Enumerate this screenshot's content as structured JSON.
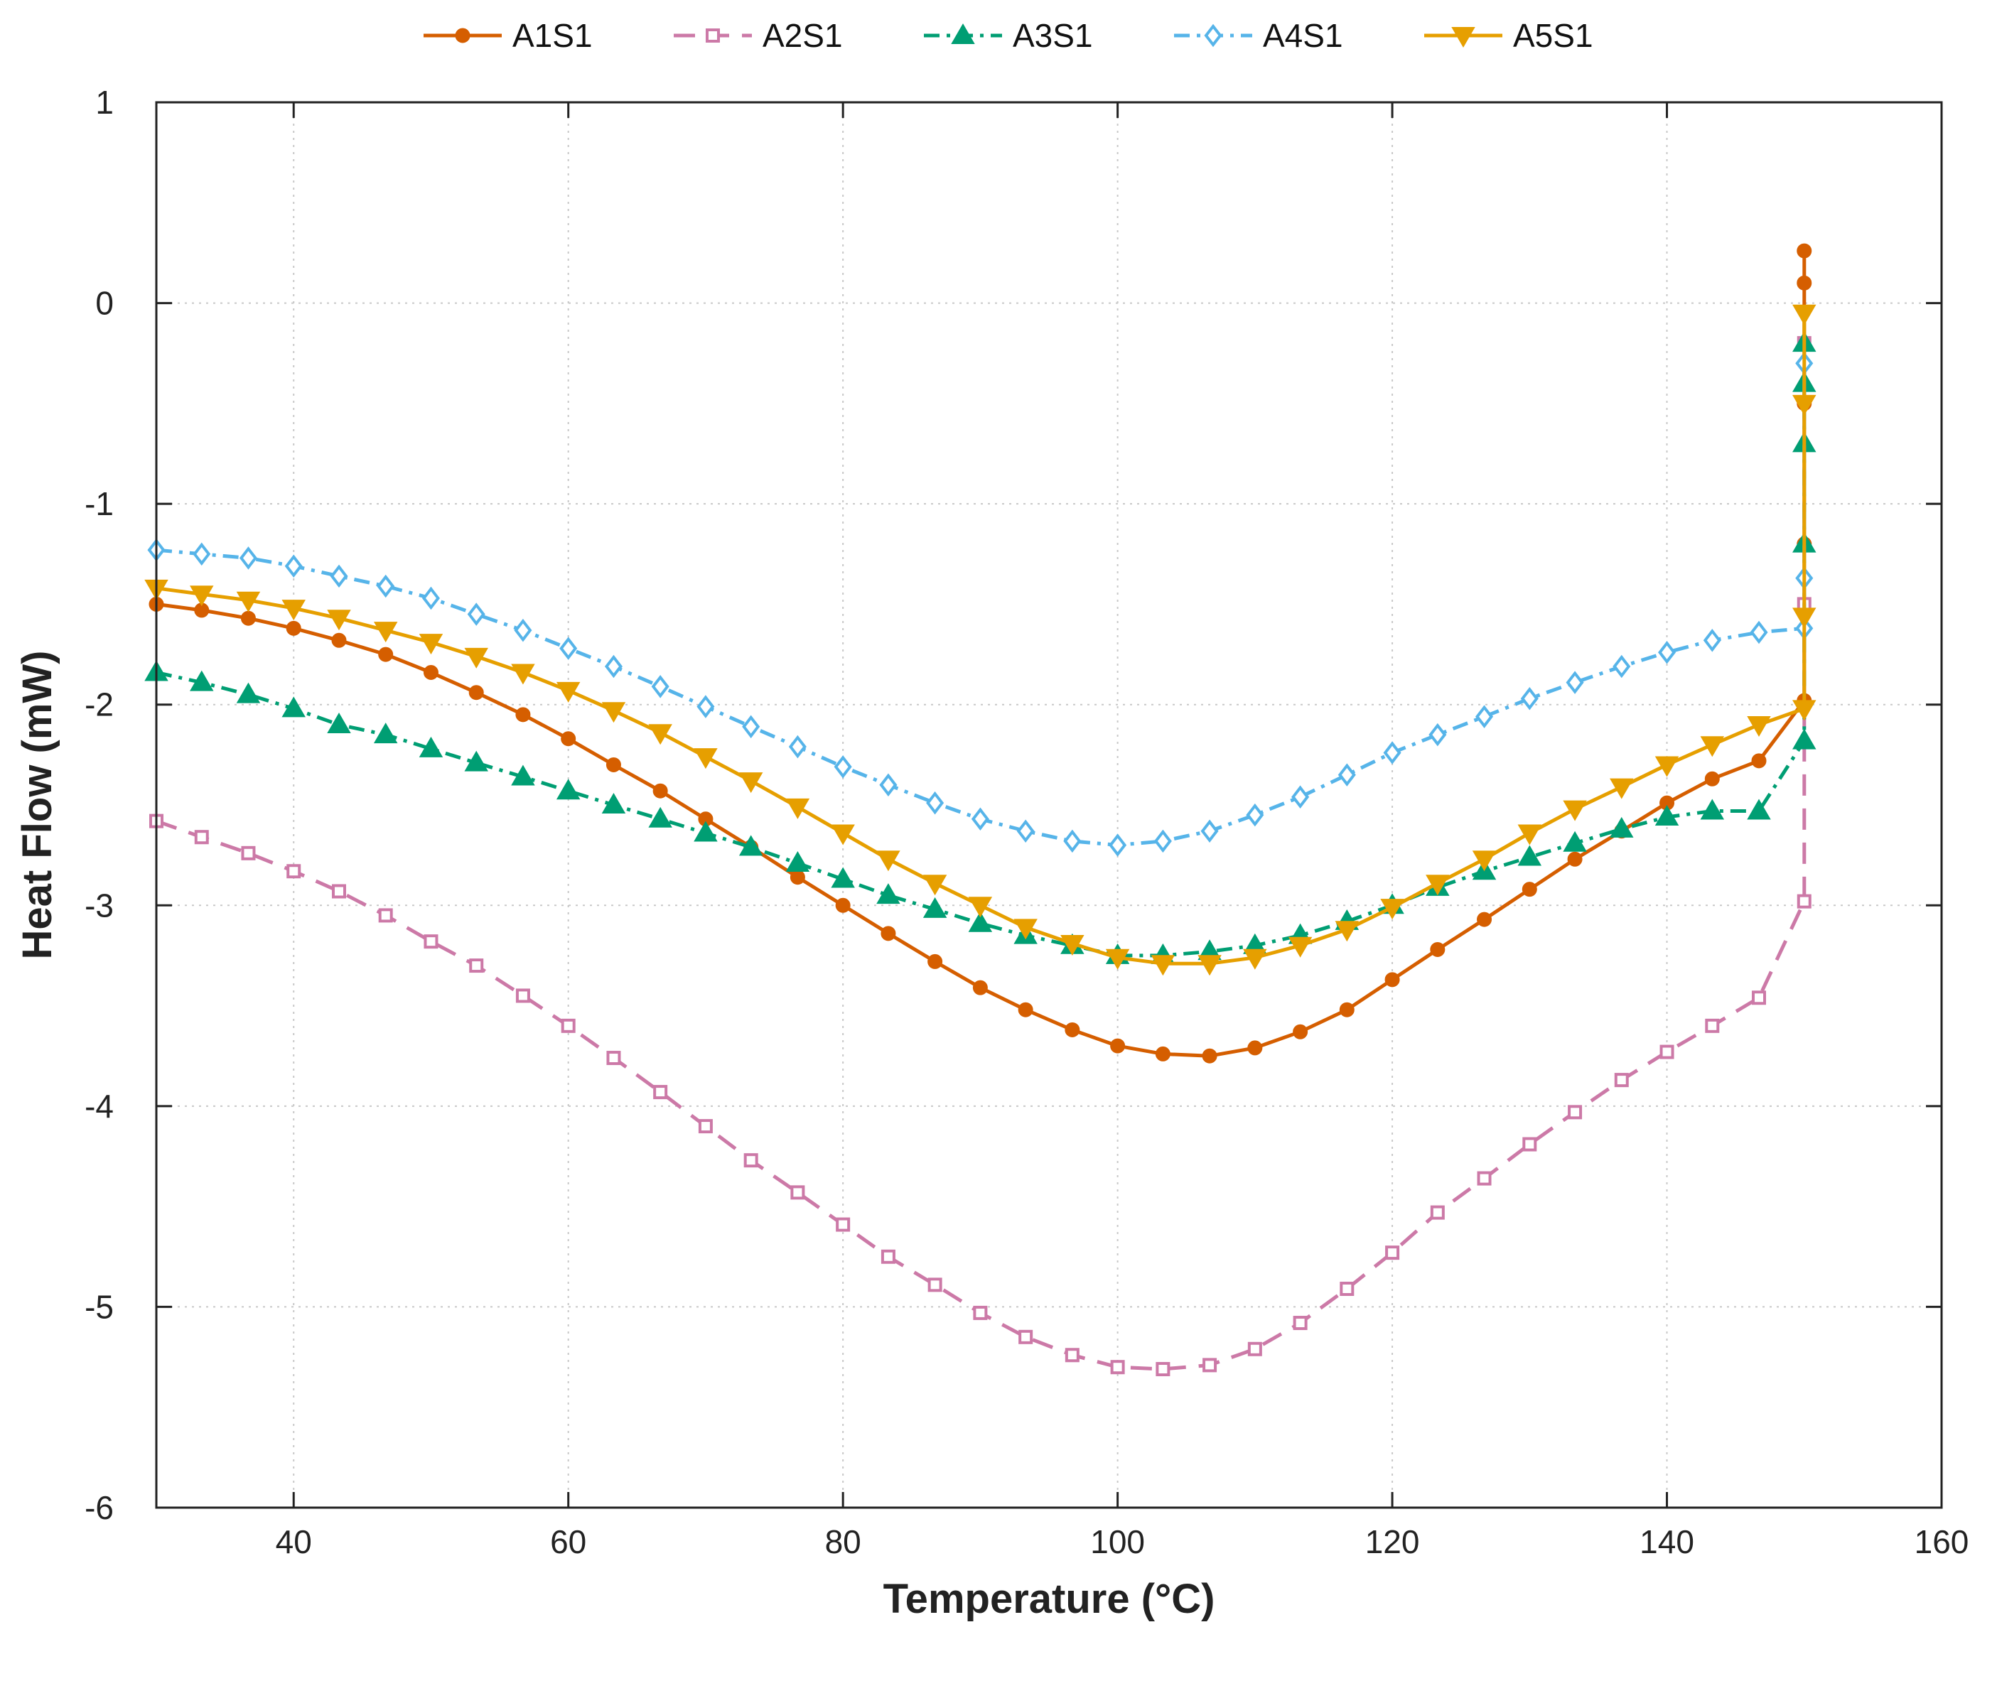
{
  "chart_data": {
    "type": "line",
    "title": "",
    "xlabel": "Temperature (°C)",
    "ylabel": "Heat Flow (mW)",
    "xlim": [
      30,
      160
    ],
    "ylim": [
      -6,
      1
    ],
    "xticks": [
      "40",
      "60",
      "80",
      "100",
      "120",
      "140",
      "160"
    ],
    "yticks": [
      "1",
      "0",
      "-1",
      "-2",
      "-3",
      "-4",
      "-5",
      "-6"
    ],
    "grid": true,
    "legend_position": "top-outside",
    "series": [
      {
        "name": "A1S1",
        "color": "#D55E00",
        "line_style": "solid",
        "marker": "circle",
        "x": [
          30,
          33.3,
          36.7,
          40,
          43.3,
          46.7,
          50,
          53.3,
          56.7,
          60,
          63.3,
          66.7,
          70,
          73.3,
          76.7,
          80,
          83.3,
          86.7,
          90,
          93.3,
          96.7,
          100,
          103.3,
          106.7,
          110,
          113.3,
          116.7,
          120,
          123.3,
          126.7,
          130,
          133.3,
          136.7,
          140,
          143.3,
          146.7,
          150,
          150,
          150,
          150,
          150
        ],
        "y": [
          -1.5,
          -1.53,
          -1.57,
          -1.62,
          -1.68,
          -1.75,
          -1.84,
          -1.94,
          -2.05,
          -2.17,
          -2.3,
          -2.43,
          -2.57,
          -2.71,
          -2.86,
          -3.0,
          -3.14,
          -3.28,
          -3.41,
          -3.52,
          -3.62,
          -3.7,
          -3.74,
          -3.75,
          -3.71,
          -3.63,
          -3.52,
          -3.37,
          -3.22,
          -3.07,
          -2.92,
          -2.77,
          -2.63,
          -2.49,
          -2.37,
          -2.28,
          -1.98,
          -1.2,
          -0.5,
          0.1,
          0.26
        ]
      },
      {
        "name": "A2S1",
        "color": "#CC79A7",
        "line_style": "dashed",
        "marker": "square",
        "x": [
          30,
          33.3,
          36.7,
          40,
          43.3,
          46.7,
          50,
          53.3,
          56.7,
          60,
          63.3,
          66.7,
          70,
          73.3,
          76.7,
          80,
          83.3,
          86.7,
          90,
          93.3,
          96.7,
          100,
          103.3,
          106.7,
          110,
          113.3,
          116.7,
          120,
          123.3,
          126.7,
          130,
          133.3,
          136.7,
          140,
          143.3,
          146.7,
          150,
          150,
          150
        ],
        "y": [
          -2.58,
          -2.66,
          -2.74,
          -2.83,
          -2.93,
          -3.05,
          -3.18,
          -3.3,
          -3.45,
          -3.6,
          -3.76,
          -3.93,
          -4.1,
          -4.27,
          -4.43,
          -4.59,
          -4.75,
          -4.89,
          -5.03,
          -5.15,
          -5.24,
          -5.3,
          -5.31,
          -5.29,
          -5.21,
          -5.08,
          -4.91,
          -4.73,
          -4.53,
          -4.36,
          -4.19,
          -4.03,
          -3.87,
          -3.73,
          -3.6,
          -3.46,
          -2.98,
          -1.5,
          -0.2
        ]
      },
      {
        "name": "A3S1",
        "color": "#009E73",
        "line_style": "dash-dot",
        "marker": "triangle-up",
        "x": [
          30,
          33.3,
          36.7,
          40,
          43.3,
          46.7,
          50,
          53.3,
          56.7,
          60,
          63.3,
          66.7,
          70,
          73.3,
          76.7,
          80,
          83.3,
          86.7,
          90,
          93.3,
          96.7,
          100,
          103.3,
          106.7,
          110,
          113.3,
          116.7,
          120,
          123.3,
          126.7,
          130,
          133.3,
          136.7,
          140,
          143.3,
          146.7,
          150,
          150,
          150,
          150,
          150
        ],
        "y": [
          -1.84,
          -1.89,
          -1.95,
          -2.02,
          -2.1,
          -2.15,
          -2.22,
          -2.29,
          -2.36,
          -2.43,
          -2.5,
          -2.57,
          -2.64,
          -2.71,
          -2.79,
          -2.87,
          -2.95,
          -3.02,
          -3.09,
          -3.15,
          -3.2,
          -3.25,
          -3.25,
          -3.23,
          -3.2,
          -3.15,
          -3.08,
          -3.0,
          -2.91,
          -2.83,
          -2.76,
          -2.69,
          -2.62,
          -2.56,
          -2.53,
          -2.53,
          -2.18,
          -1.2,
          -0.7,
          -0.4,
          -0.2
        ]
      },
      {
        "name": "A4S1",
        "color": "#56B4E9",
        "line_style": "dash-dot",
        "marker": "diamond",
        "x": [
          30,
          33.3,
          36.7,
          40,
          43.3,
          46.7,
          50,
          53.3,
          56.7,
          60,
          63.3,
          66.7,
          70,
          73.3,
          76.7,
          80,
          83.3,
          86.7,
          90,
          93.3,
          96.7,
          100,
          103.3,
          106.7,
          110,
          113.3,
          116.7,
          120,
          123.3,
          126.7,
          130,
          133.3,
          136.7,
          140,
          143.3,
          146.7,
          150,
          150,
          150
        ],
        "y": [
          -1.23,
          -1.25,
          -1.27,
          -1.31,
          -1.36,
          -1.41,
          -1.47,
          -1.55,
          -1.63,
          -1.72,
          -1.81,
          -1.91,
          -2.01,
          -2.11,
          -2.21,
          -2.31,
          -2.4,
          -2.49,
          -2.57,
          -2.63,
          -2.68,
          -2.7,
          -2.68,
          -2.63,
          -2.55,
          -2.46,
          -2.35,
          -2.24,
          -2.15,
          -2.06,
          -1.97,
          -1.89,
          -1.81,
          -1.74,
          -1.68,
          -1.64,
          -1.62,
          -1.37,
          -0.3
        ]
      },
      {
        "name": "A5S1",
        "color": "#E69F00",
        "line_style": "solid",
        "marker": "triangle-down",
        "x": [
          30,
          33.3,
          36.7,
          40,
          43.3,
          46.7,
          50,
          53.3,
          56.7,
          60,
          63.3,
          66.7,
          70,
          73.3,
          76.7,
          80,
          83.3,
          86.7,
          90,
          93.3,
          96.7,
          100,
          103.3,
          106.7,
          110,
          113.3,
          116.7,
          120,
          123.3,
          126.7,
          130,
          133.3,
          136.7,
          140,
          143.3,
          146.7,
          150,
          150,
          150,
          150
        ],
        "y": [
          -1.42,
          -1.45,
          -1.48,
          -1.52,
          -1.57,
          -1.63,
          -1.69,
          -1.76,
          -1.84,
          -1.93,
          -2.03,
          -2.14,
          -2.26,
          -2.38,
          -2.51,
          -2.64,
          -2.77,
          -2.89,
          -3.0,
          -3.11,
          -3.19,
          -3.26,
          -3.29,
          -3.29,
          -3.26,
          -3.2,
          -3.12,
          -3.01,
          -2.89,
          -2.77,
          -2.64,
          -2.52,
          -2.41,
          -2.3,
          -2.2,
          -2.1,
          -2.02,
          -1.56,
          -0.5,
          -0.05
        ]
      }
    ]
  }
}
